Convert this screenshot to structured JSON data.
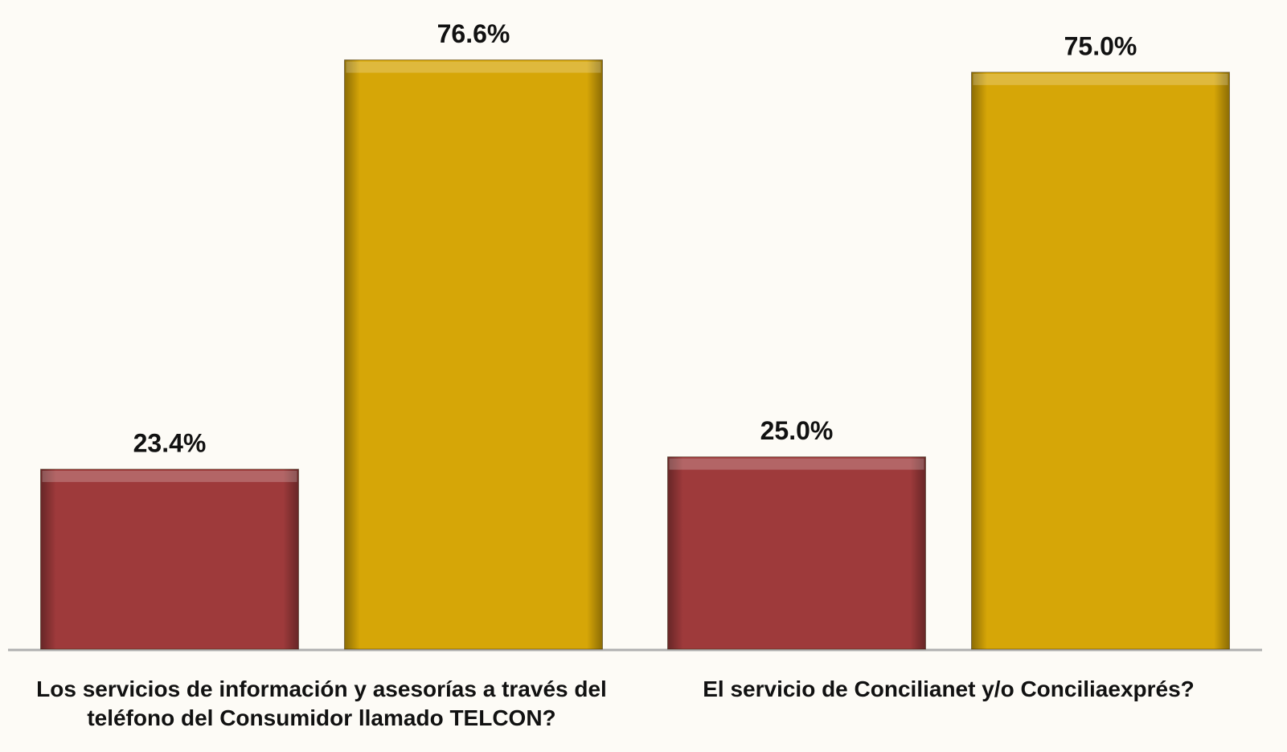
{
  "chart_data": {
    "type": "bar",
    "categories": [
      "Los servicios de información y asesorías a través del teléfono del Consumidor llamado TELCON?",
      "El servicio de Concilianet y/o Conciliaexprés?"
    ],
    "series": [
      {
        "color": "#9e3a3b",
        "values": [
          23.4,
          25.0
        ],
        "value_labels": [
          "23.4%",
          "25.0%"
        ]
      },
      {
        "color": "#d6a607",
        "values": [
          76.6,
          75.0
        ],
        "value_labels": [
          "76.6%",
          "75.0%"
        ]
      }
    ],
    "ylim": [
      0,
      80
    ]
  }
}
